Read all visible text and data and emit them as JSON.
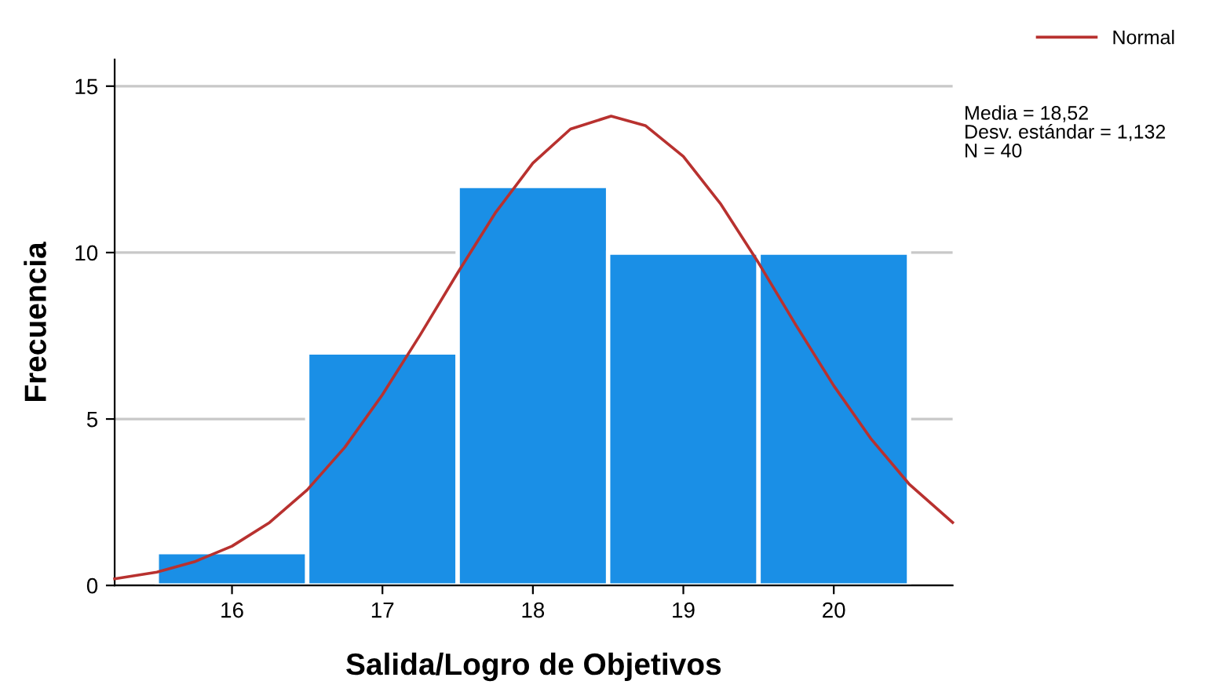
{
  "chart_data": {
    "type": "histogram",
    "xlabel": "Salida/Logro de Objetivos",
    "ylabel": "Frecuencia",
    "bins": [
      15.5,
      16.5,
      17.5,
      18.5,
      19.5,
      20.5
    ],
    "values": [
      1,
      7,
      12,
      10,
      10
    ],
    "color": "#1a8fe6",
    "series": [
      {
        "type": "line",
        "name": "Normal",
        "color": "#b8312f",
        "x": [
          15.22,
          15.5,
          15.75,
          16,
          16.25,
          16.5,
          16.75,
          17,
          17.25,
          17.5,
          17.75,
          18,
          18.25,
          18.52,
          18.75,
          19,
          19.25,
          19.5,
          19.75,
          20,
          20.25,
          20.5,
          20.79
        ],
        "values": [
          0.2,
          0.4,
          0.71,
          1.18,
          1.89,
          2.87,
          4.15,
          5.73,
          7.52,
          9.39,
          11.19,
          12.69,
          13.71,
          14.1,
          13.81,
          12.89,
          11.45,
          9.69,
          7.81,
          6.0,
          4.39,
          3.05,
          1.89
        ]
      }
    ],
    "xlim": [
      15.22,
      20.79
    ],
    "ylim": [
      0,
      15.8
    ],
    "xticks": [
      16,
      17,
      18,
      19,
      20
    ],
    "yticks": [
      0,
      5,
      10,
      15
    ],
    "grid": "y",
    "legend": "top right",
    "marker": "none",
    "line_style": "solid",
    "annotations": [
      "Media = 18,52",
      "Desv. estándar = 1,132",
      "N = 40"
    ]
  }
}
